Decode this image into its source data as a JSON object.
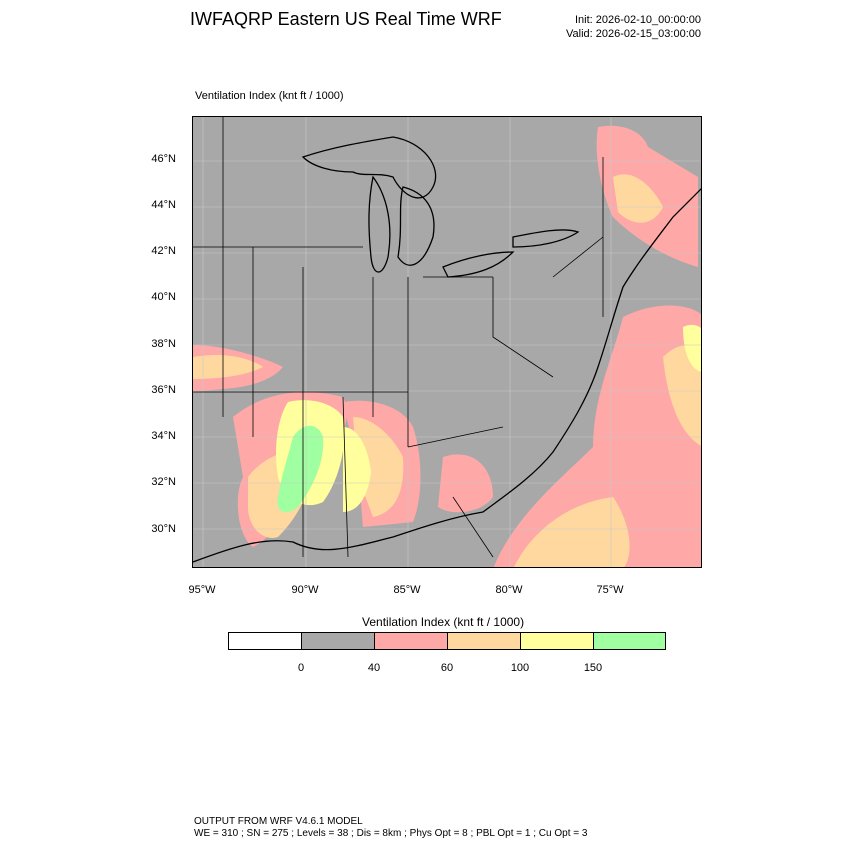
{
  "title": "IWFAQRP Eastern US Real Time WRF",
  "init_text": "Init: 2026-02-10_00:00:00",
  "valid_text": "Valid: 2026-02-15_03:00:00",
  "map_label": "Ventilation Index   (knt ft / 1000)",
  "lat_labels": [
    "46°N",
    "44°N",
    "42°N",
    "40°N",
    "38°N",
    "36°N",
    "34°N",
    "32°N",
    "30°N"
  ],
  "lon_labels": [
    "95°W",
    "90°W",
    "85°W",
    "80°W",
    "75°W"
  ],
  "legend": {
    "title": "Ventilation Index  (knt ft / 1000)",
    "ticks": [
      "0",
      "40",
      "60",
      "100",
      "150"
    ],
    "colors": [
      "#ffffff",
      "#a8a8a8",
      "#ffa8a8",
      "#ffd8a0",
      "#ffff9e",
      "#a0ffa0"
    ]
  },
  "footer_line1": "OUTPUT FROM WRF V4.6.1 MODEL",
  "footer_line2": "WE = 310 ; SN = 275 ; Levels = 38 ; Dis = 8km ; Phys Opt = 8 ; PBL Opt = 1 ; Cu Opt = 3"
}
